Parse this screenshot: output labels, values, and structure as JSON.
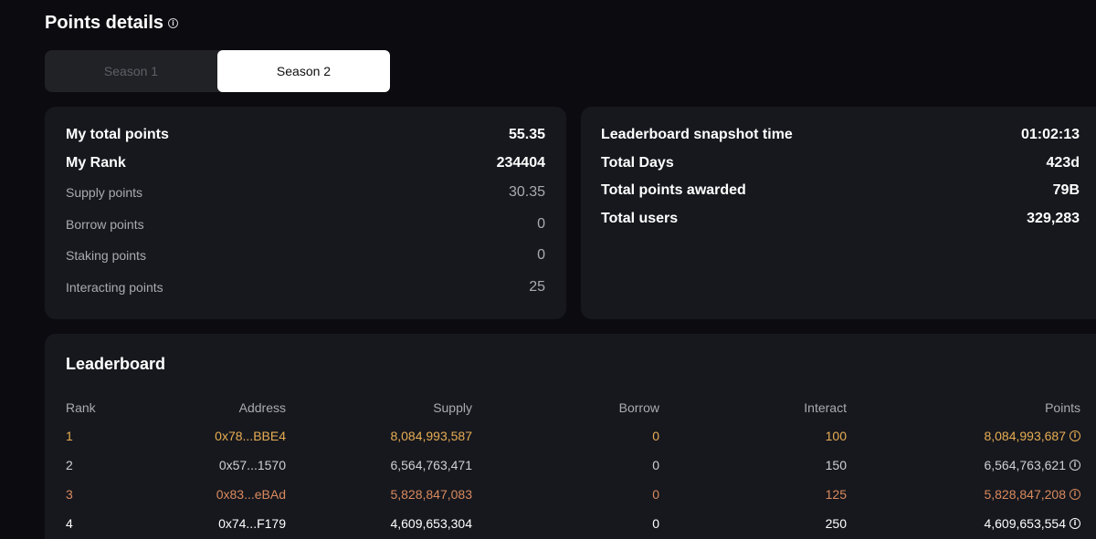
{
  "header": {
    "title": "Points details"
  },
  "tabs": [
    {
      "label": "Season 1",
      "active": false
    },
    {
      "label": "Season 2",
      "active": true
    }
  ],
  "my_points": {
    "total_label": "My total points",
    "total_value": "55.35",
    "rank_label": "My Rank",
    "rank_value": "234404",
    "breakdown": [
      {
        "label": "Supply points",
        "value": "30.35"
      },
      {
        "label": "Borrow points",
        "value": "0"
      },
      {
        "label": "Staking points",
        "value": "0"
      },
      {
        "label": "Interacting points",
        "value": "25"
      }
    ]
  },
  "stats": [
    {
      "label": "Leaderboard snapshot time",
      "value": "01:02:13"
    },
    {
      "label": "Total Days",
      "value": "423d"
    },
    {
      "label": "Total points awarded",
      "value": "79B"
    },
    {
      "label": "Total users",
      "value": "329,283"
    }
  ],
  "leaderboard": {
    "title": "Leaderboard",
    "columns": [
      "Rank",
      "Address",
      "Supply",
      "Borrow",
      "Interact",
      "Points"
    ],
    "rows": [
      {
        "rank": "1",
        "address": "0x78...BBE4",
        "supply": "8,084,993,587",
        "borrow": "0",
        "interact": "100",
        "points": "8,084,993,687"
      },
      {
        "rank": "2",
        "address": "0x57...1570",
        "supply": "6,564,763,471",
        "borrow": "0",
        "interact": "150",
        "points": "6,564,763,621"
      },
      {
        "rank": "3",
        "address": "0x83...eBAd",
        "supply": "5,828,847,083",
        "borrow": "0",
        "interact": "125",
        "points": "5,828,847,208"
      },
      {
        "rank": "4",
        "address": "0x74...F179",
        "supply": "4,609,653,304",
        "borrow": "0",
        "interact": "250",
        "points": "4,609,653,554"
      }
    ]
  },
  "colors": {
    "background": "#0b0b10",
    "card": "#17181e",
    "rank1": "#e7ad52",
    "rank3": "#d98a5e"
  }
}
